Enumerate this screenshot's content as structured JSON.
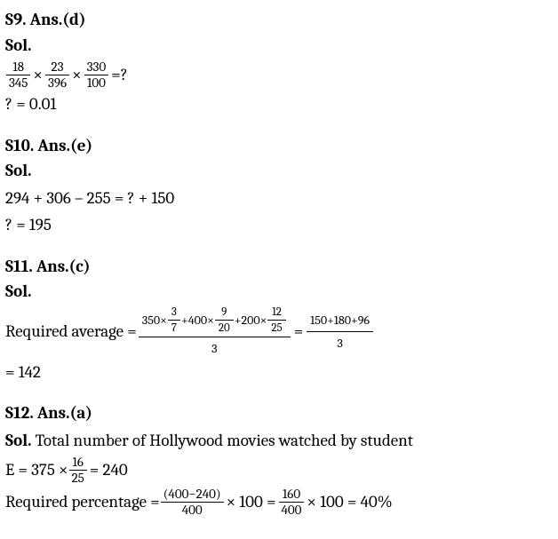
{
  "font": {
    "family": "Cambria/serif",
    "size_pt": 14,
    "heading_weight": "bold",
    "color": "#000000"
  },
  "background_color": "#ffffff",
  "s9": {
    "heading": "S9. Ans.(d)",
    "sol_label": "Sol.",
    "frac1": {
      "num": "18",
      "den": "345"
    },
    "op1": "×",
    "frac2": {
      "num": "23",
      "den": "396"
    },
    "op2": "×",
    "frac3": {
      "num": "330",
      "den": "100"
    },
    "eq": "=?",
    "result": "? = 0.01"
  },
  "s10": {
    "heading": "S10. Ans.(e)",
    "sol_label": "Sol.",
    "line1": "294 + 306 – 255 = ? + 150",
    "result": "? = 195"
  },
  "s11": {
    "heading": "S11. Ans.(c)",
    "sol_label": "Sol.",
    "lead": "Required average =",
    "term1": {
      "coef": "350×",
      "num": "3",
      "den": "7"
    },
    "plus1": "+",
    "term2": {
      "coef": "400×",
      "num": "9",
      "den": "20"
    },
    "plus2": "+",
    "term3": {
      "coef": "200×",
      "num": "12",
      "den": "25"
    },
    "den_left": "3",
    "eq1": "=",
    "num_right": "150+180+96",
    "den_right": "3",
    "result": "= 142"
  },
  "s12": {
    "heading": "S12. Ans.(a)",
    "sol_label": "Sol. ",
    "line1_text": "Total number of Hollywood movies watched by student",
    "e_lead": "E = 375 ×",
    "e_frac": {
      "num": "16",
      "den": "25"
    },
    "e_result": "= 240",
    "pct_lead": "Required percentage =",
    "pct_frac1": {
      "num": "(400−240)",
      "den": "400"
    },
    "times100a": "× 100 =",
    "pct_frac2": {
      "num": "160",
      "den": "400"
    },
    "times100b": "× 100 = 40%"
  }
}
